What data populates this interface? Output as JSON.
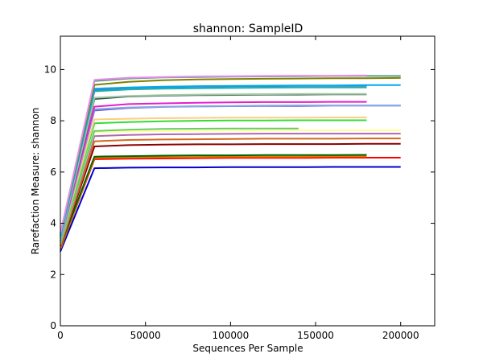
{
  "chart_data": {
    "type": "line",
    "title": "shannon: SampleID",
    "xlabel": "Sequences Per Sample",
    "ylabel": "Rarefaction Measure: shannon",
    "xlim": [
      0,
      220000
    ],
    "ylim": [
      0,
      11.3
    ],
    "xticks": [
      0,
      50000,
      100000,
      150000,
      200000
    ],
    "yticks": [
      0,
      2,
      4,
      6,
      8,
      10
    ],
    "xtick_labels": [
      "0",
      "50000",
      "100000",
      "150000",
      "200000"
    ],
    "ytick_labels": [
      "0",
      "2",
      "4",
      "6",
      "8",
      "10"
    ],
    "grid": false,
    "series": [
      {
        "color": "#0000cc",
        "x": [
          0,
          20000,
          40000,
          60000,
          80000,
          100000,
          120000,
          140000,
          160000,
          180000,
          200000
        ],
        "y": [
          2.9,
          6.15,
          6.17,
          6.18,
          6.18,
          6.19,
          6.19,
          6.19,
          6.2,
          6.2,
          6.2
        ]
      },
      {
        "color": "#ff0000",
        "x": [
          0,
          20000,
          40000,
          60000,
          80000,
          100000,
          120000,
          140000,
          160000,
          180000,
          200000
        ],
        "y": [
          3.0,
          6.5,
          6.52,
          6.53,
          6.54,
          6.55,
          6.55,
          6.55,
          6.56,
          6.56,
          6.56
        ]
      },
      {
        "color": "#e07b00",
        "x": [
          0,
          20000,
          40000,
          60000,
          80000,
          100000,
          120000,
          140000,
          160000,
          180000
        ],
        "y": [
          3.0,
          6.55,
          6.57,
          6.58,
          6.59,
          6.6,
          6.6,
          6.6,
          6.61,
          6.61
        ]
      },
      {
        "color": "#006400",
        "x": [
          0,
          20000,
          40000,
          60000,
          80000,
          100000,
          120000,
          140000,
          160000,
          180000
        ],
        "y": [
          3.1,
          6.6,
          6.62,
          6.64,
          6.65,
          6.65,
          6.66,
          6.66,
          6.66,
          6.67
        ]
      },
      {
        "color": "#8b0000",
        "x": [
          0,
          20000,
          40000,
          60000,
          80000,
          100000,
          120000,
          140000,
          160000,
          180000,
          200000
        ],
        "y": [
          3.1,
          7.0,
          7.05,
          7.07,
          7.08,
          7.08,
          7.09,
          7.09,
          7.09,
          7.1,
          7.1
        ]
      },
      {
        "color": "#d2691e",
        "x": [
          0,
          20000,
          40000,
          60000,
          80000,
          100000,
          120000,
          140000,
          160000,
          180000,
          200000
        ],
        "y": [
          3.1,
          7.2,
          7.25,
          7.27,
          7.28,
          7.29,
          7.3,
          7.3,
          7.3,
          7.31,
          7.31
        ]
      },
      {
        "color": "#b266b2",
        "x": [
          0,
          20000,
          40000,
          60000,
          80000,
          100000,
          120000,
          140000,
          160000,
          180000,
          200000
        ],
        "y": [
          3.2,
          7.4,
          7.45,
          7.47,
          7.48,
          7.49,
          7.5,
          7.5,
          7.5,
          7.5,
          7.5
        ]
      },
      {
        "color": "#ffff99",
        "x": [
          0,
          20000,
          40000,
          60000,
          80000,
          100000,
          120000,
          140000,
          160000,
          180000,
          200000
        ],
        "y": [
          3.2,
          7.55,
          7.58,
          7.6,
          7.61,
          7.62,
          7.62,
          7.63,
          7.63,
          7.63,
          7.63
        ]
      },
      {
        "color": "#66cc66",
        "x": [
          0,
          20000,
          40000,
          60000,
          80000,
          100000,
          120000,
          140000
        ],
        "y": [
          3.2,
          7.6,
          7.65,
          7.68,
          7.69,
          7.7,
          7.7,
          7.7
        ]
      },
      {
        "color": "#33dd33",
        "x": [
          0,
          20000,
          40000,
          60000,
          80000,
          100000,
          120000,
          140000,
          160000,
          180000
        ],
        "y": [
          3.3,
          7.9,
          7.95,
          7.98,
          8.0,
          8.01,
          8.01,
          8.02,
          8.02,
          8.02
        ]
      },
      {
        "color": "#ffcc80",
        "x": [
          0,
          20000,
          40000,
          60000,
          80000,
          100000,
          120000,
          140000,
          160000,
          180000
        ],
        "y": [
          3.3,
          8.05,
          8.08,
          8.1,
          8.11,
          8.12,
          8.12,
          8.12,
          8.13,
          8.13
        ]
      },
      {
        "color": "#6a5acd",
        "x": [
          0,
          20000,
          40000,
          60000,
          80000,
          100000,
          120000,
          140000,
          160000,
          180000,
          200000
        ],
        "y": [
          3.3,
          8.4,
          8.5,
          8.54,
          8.56,
          8.57,
          8.58,
          8.58,
          8.59,
          8.59,
          8.59
        ]
      },
      {
        "color": "#87a9e8",
        "x": [
          0,
          20000,
          40000,
          60000,
          80000,
          100000,
          120000,
          140000,
          160000,
          180000,
          200000
        ],
        "y": [
          3.3,
          8.45,
          8.52,
          8.55,
          8.57,
          8.58,
          8.59,
          8.6,
          8.6,
          8.6,
          8.6
        ]
      },
      {
        "color": "#e61ec8",
        "x": [
          0,
          20000,
          40000,
          60000,
          80000,
          100000,
          120000,
          140000,
          160000,
          180000
        ],
        "y": [
          3.4,
          8.55,
          8.65,
          8.68,
          8.7,
          8.72,
          8.73,
          8.73,
          8.74,
          8.74
        ]
      },
      {
        "color": "#2f4f4f",
        "x": [
          0,
          20000,
          40000,
          60000,
          80000,
          100000,
          120000,
          140000,
          160000,
          180000
        ],
        "y": [
          3.4,
          8.85,
          8.95,
          8.98,
          9.0,
          9.01,
          9.02,
          9.02,
          9.03,
          9.03
        ]
      },
      {
        "color": "#a0c8a0",
        "x": [
          0,
          20000,
          40000,
          60000,
          80000,
          100000,
          120000,
          140000,
          160000,
          180000
        ],
        "y": [
          3.4,
          8.9,
          8.97,
          9.0,
          9.02,
          9.03,
          9.04,
          9.05,
          9.05,
          9.05
        ]
      },
      {
        "color": "#20b2aa",
        "x": [
          0,
          20000,
          40000,
          60000,
          80000,
          100000,
          120000,
          140000,
          160000,
          180000
        ],
        "y": [
          3.5,
          9.15,
          9.22,
          9.25,
          9.27,
          9.28,
          9.29,
          9.3,
          9.3,
          9.3
        ]
      },
      {
        "color": "#4682b4",
        "x": [
          0,
          20000,
          40000,
          60000,
          80000,
          100000,
          120000,
          140000,
          160000,
          180000
        ],
        "y": [
          3.5,
          9.2,
          9.28,
          9.31,
          9.33,
          9.34,
          9.35,
          9.36,
          9.36,
          9.36
        ]
      },
      {
        "color": "#00aaee",
        "x": [
          0,
          20000,
          40000,
          60000,
          80000,
          100000,
          120000,
          140000,
          160000,
          180000,
          200000
        ],
        "y": [
          3.5,
          9.25,
          9.3,
          9.33,
          9.35,
          9.36,
          9.37,
          9.38,
          9.38,
          9.39,
          9.39
        ]
      },
      {
        "color": "#808000",
        "x": [
          0,
          20000,
          40000,
          60000,
          80000,
          100000,
          120000,
          140000,
          160000,
          180000,
          200000
        ],
        "y": [
          3.6,
          9.4,
          9.52,
          9.58,
          9.61,
          9.63,
          9.64,
          9.65,
          9.66,
          9.66,
          9.67
        ]
      },
      {
        "color": "#5a9a8a",
        "x": [
          0,
          20000,
          40000,
          60000,
          80000,
          100000,
          120000,
          140000,
          160000,
          180000,
          200000
        ],
        "y": [
          3.6,
          9.55,
          9.65,
          9.69,
          9.71,
          9.72,
          9.73,
          9.74,
          9.75,
          9.75,
          9.75
        ]
      },
      {
        "color": "#e88ee8",
        "x": [
          0,
          20000,
          40000,
          60000,
          80000,
          100000,
          120000,
          140000,
          160000,
          180000
        ],
        "y": [
          3.6,
          9.6,
          9.68,
          9.71,
          9.73,
          9.74,
          9.75,
          9.76,
          9.76,
          9.77
        ]
      }
    ]
  }
}
